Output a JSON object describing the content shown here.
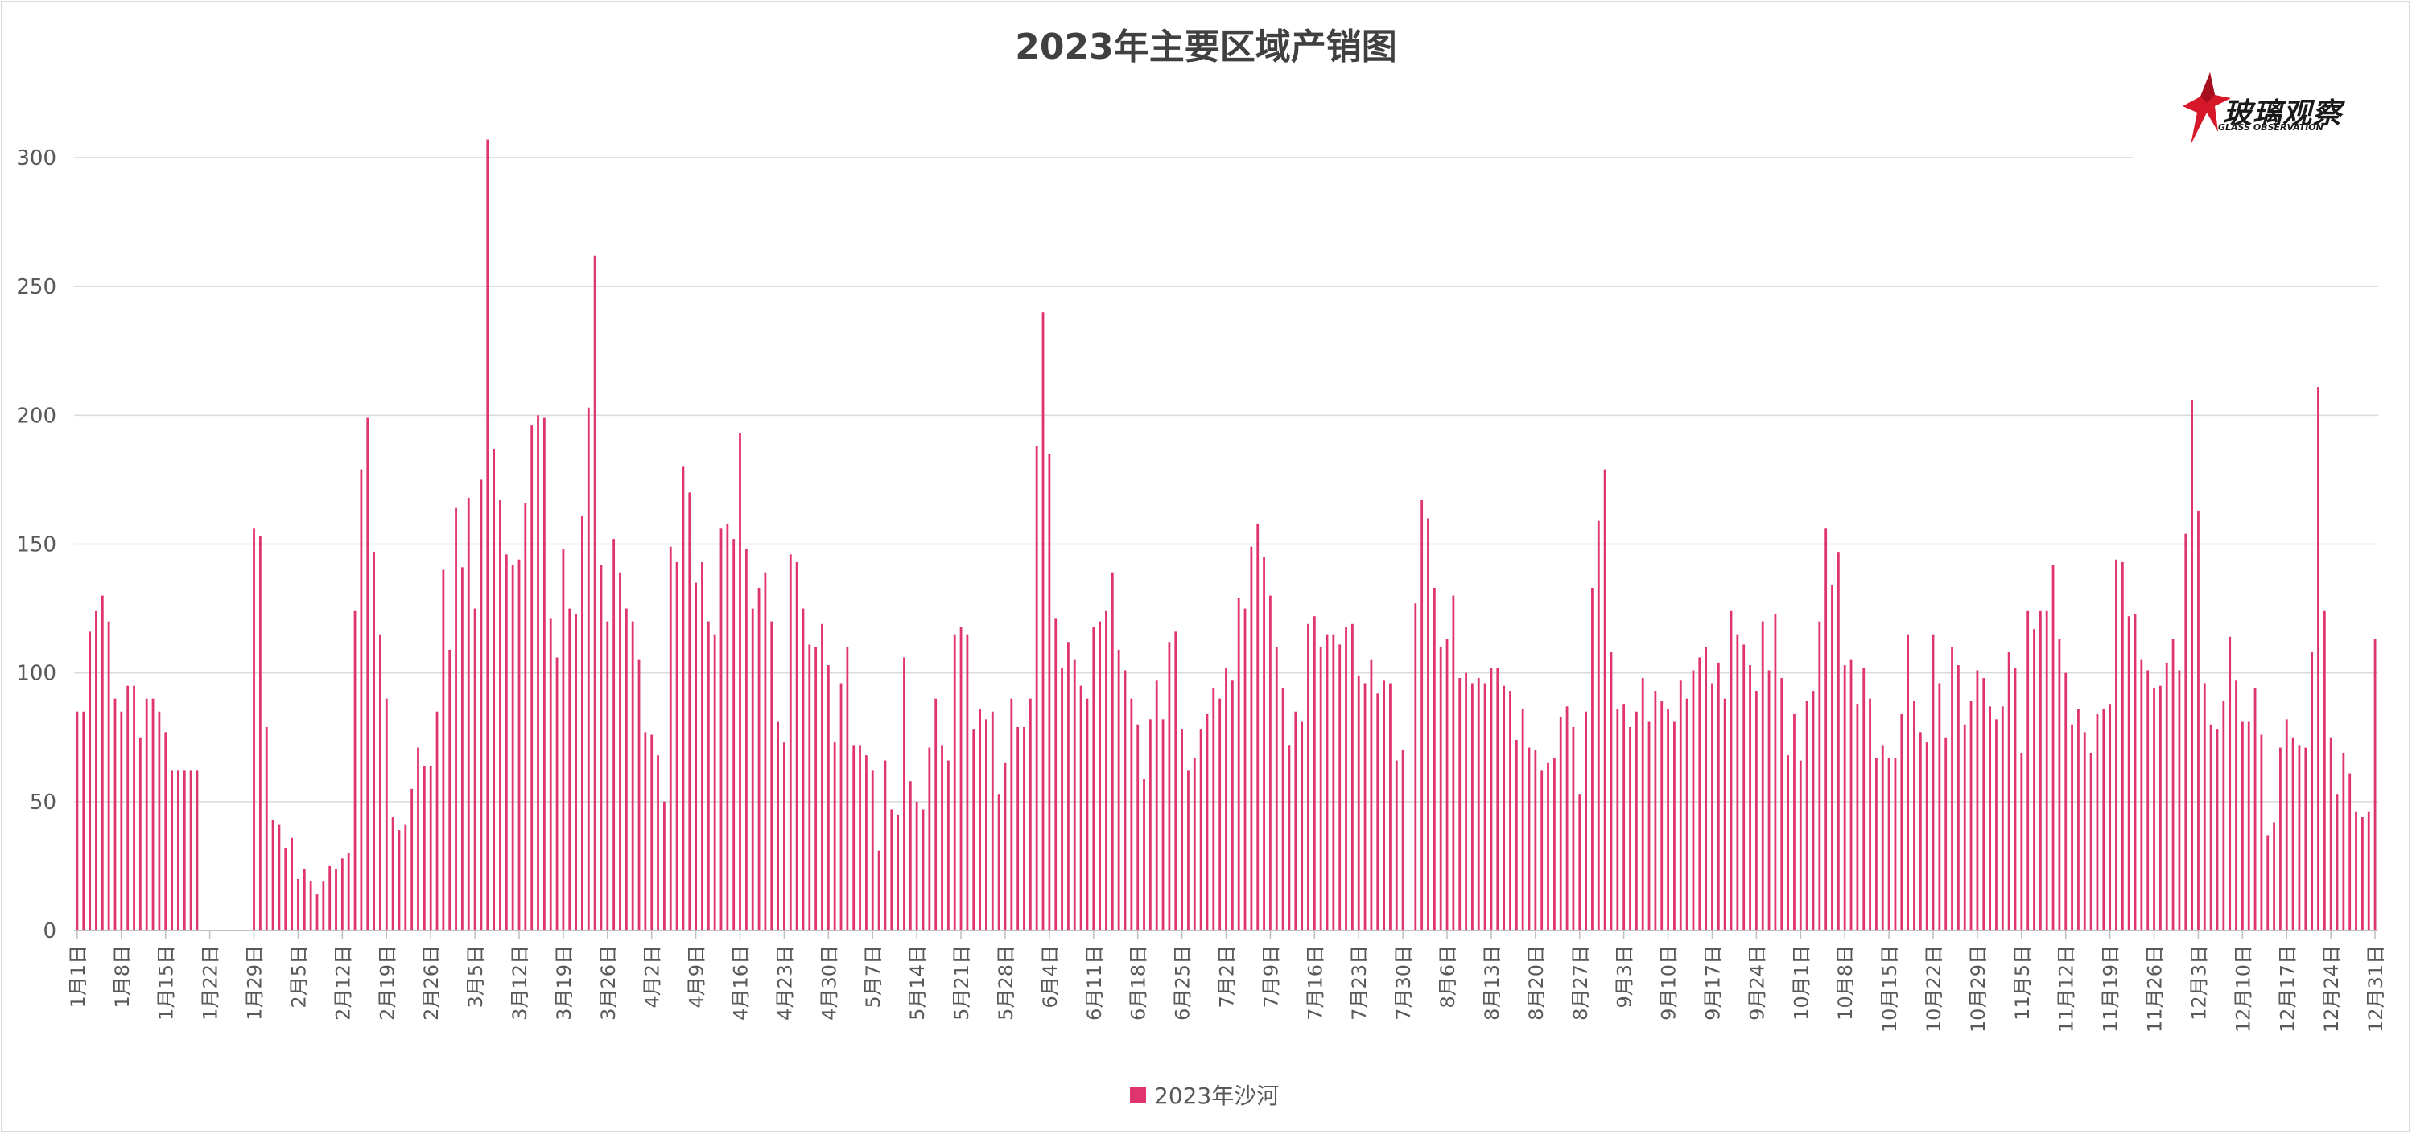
{
  "colors": {
    "bar": "#e0346e",
    "grid": "#d9d9d9",
    "axis": "#bfbfbf",
    "text": "#595959",
    "title": "#404040"
  },
  "logo": {
    "cn": "玻璃观察",
    "en": "GLASS OBSERVATION",
    "icon": "red-star-icon"
  },
  "chart_data": {
    "type": "bar",
    "title": "2023年主要区域产销图",
    "xlabel": "",
    "ylabel": "",
    "ylim": [
      0,
      300
    ],
    "yticks": [
      0,
      50,
      100,
      150,
      200,
      250,
      300
    ],
    "grid": true,
    "legend_position": "bottom",
    "x_tick_labels": [
      "1月1日",
      "1月8日",
      "1月15日",
      "1月22日",
      "1月29日",
      "2月5日",
      "2月12日",
      "2月19日",
      "2月26日",
      "3月5日",
      "3月12日",
      "3月19日",
      "3月26日",
      "4月2日",
      "4月9日",
      "4月16日",
      "4月23日",
      "4月30日",
      "5月7日",
      "5月14日",
      "5月21日",
      "5月28日",
      "6月4日",
      "6月11日",
      "6月18日",
      "6月25日",
      "7月2日",
      "7月9日",
      "7月16日",
      "7月23日",
      "7月30日",
      "8月6日",
      "8月13日",
      "8月20日",
      "8月27日",
      "9月3日",
      "9月10日",
      "9月17日",
      "9月24日",
      "10月1日",
      "10月8日",
      "10月15日",
      "10月22日",
      "10月29日",
      "11月5日",
      "11月12日",
      "11月19日",
      "11月26日",
      "12月3日",
      "12月10日",
      "12月17日",
      "12月24日",
      "12月31日"
    ],
    "series": [
      {
        "name": "2023年沙河",
        "values": [
          85,
          85,
          116,
          124,
          130,
          120,
          90,
          85,
          95,
          95,
          75,
          90,
          90,
          85,
          77,
          62,
          62,
          62,
          62,
          62,
          0,
          0,
          0,
          0,
          0,
          0,
          0,
          0,
          156,
          153,
          79,
          43,
          41,
          32,
          36,
          20,
          24,
          19,
          14,
          19,
          25,
          24,
          28,
          30,
          124,
          179,
          199,
          147,
          115,
          90,
          44,
          39,
          41,
          55,
          71,
          64,
          64,
          85,
          140,
          109,
          164,
          141,
          168,
          125,
          175,
          307,
          187,
          167,
          146,
          142,
          144,
          166,
          196,
          200,
          199,
          121,
          106,
          148,
          125,
          123,
          161,
          203,
          262,
          142,
          120,
          152,
          139,
          125,
          120,
          105,
          77,
          76,
          68,
          50,
          149,
          143,
          180,
          170,
          135,
          143,
          120,
          115,
          156,
          158,
          152,
          193,
          148,
          125,
          133,
          139,
          120,
          81,
          73,
          146,
          143,
          125,
          111,
          110,
          119,
          103,
          73,
          96,
          110,
          72,
          72,
          68,
          62,
          31,
          66,
          47,
          45,
          106,
          58,
          50,
          47,
          71,
          90,
          72,
          66,
          115,
          118,
          115,
          78,
          86,
          82,
          85,
          53,
          65,
          90,
          79,
          79,
          90,
          188,
          240,
          185,
          121,
          102,
          112,
          105,
          95,
          90,
          118,
          120,
          124,
          139,
          109,
          101,
          90,
          80,
          59,
          82,
          97,
          82,
          112,
          116,
          78,
          62,
          67,
          78,
          84,
          94,
          90,
          102,
          97,
          129,
          125,
          149,
          158,
          145,
          130,
          110,
          94,
          72,
          85,
          81,
          119,
          122,
          110,
          115,
          115,
          111,
          118,
          119,
          99,
          96,
          105,
          92,
          97,
          96,
          66,
          70,
          0,
          127,
          167,
          160,
          133,
          110,
          113,
          130,
          98,
          100,
          96,
          98,
          96,
          102,
          102,
          95,
          93,
          74,
          86,
          71,
          70,
          62,
          65,
          67,
          83,
          87,
          79,
          53,
          85,
          133,
          159,
          179,
          108,
          86,
          88,
          79,
          85,
          98,
          81,
          93,
          89,
          86,
          81,
          97,
          90,
          101,
          106,
          110,
          96,
          104,
          90,
          124,
          115,
          111,
          103,
          93,
          120,
          101,
          123,
          98,
          68,
          84,
          66,
          89,
          93,
          120,
          156,
          134,
          147,
          103,
          105,
          88,
          102,
          90,
          67,
          72,
          67,
          67,
          84,
          115,
          89,
          77,
          73,
          115,
          96,
          75,
          110,
          103,
          80,
          89,
          101,
          98,
          87,
          82,
          87,
          108,
          102,
          69,
          124,
          117,
          124,
          124,
          142,
          113,
          100,
          80,
          86,
          77,
          69,
          84,
          86,
          88,
          144,
          143,
          122,
          123,
          105,
          101,
          94,
          95,
          104,
          113,
          101,
          154,
          206,
          163,
          96,
          80,
          78,
          89,
          114,
          97,
          81,
          81,
          94,
          76,
          37,
          42,
          71,
          82,
          75,
          72,
          71,
          108,
          211,
          124,
          75,
          53,
          69,
          61,
          46,
          44,
          46,
          113
        ]
      }
    ]
  }
}
